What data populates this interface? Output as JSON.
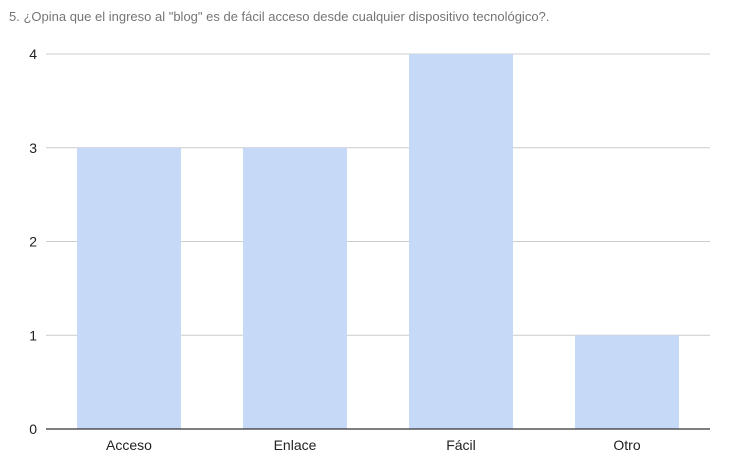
{
  "chart_data": {
    "type": "bar",
    "title": "5. ¿Opina que el ingreso al \"blog\" es de fácil acceso desde cualquier dispositivo tecnológico?.",
    "xlabel": "",
    "ylabel": "",
    "categories": [
      "Acceso",
      "Enlace",
      "Fácil",
      "Otro"
    ],
    "values": [
      3,
      3,
      4,
      1
    ],
    "ylim": [
      0,
      4
    ],
    "yticks": [
      "0",
      "1",
      "2",
      "3",
      "4"
    ],
    "grid": true,
    "legend": "none",
    "colors": {
      "bar": "#c6d9f7",
      "grid": "#cccccc",
      "axis": "#333333",
      "title": "#757575",
      "tick_label": "#222222"
    }
  }
}
